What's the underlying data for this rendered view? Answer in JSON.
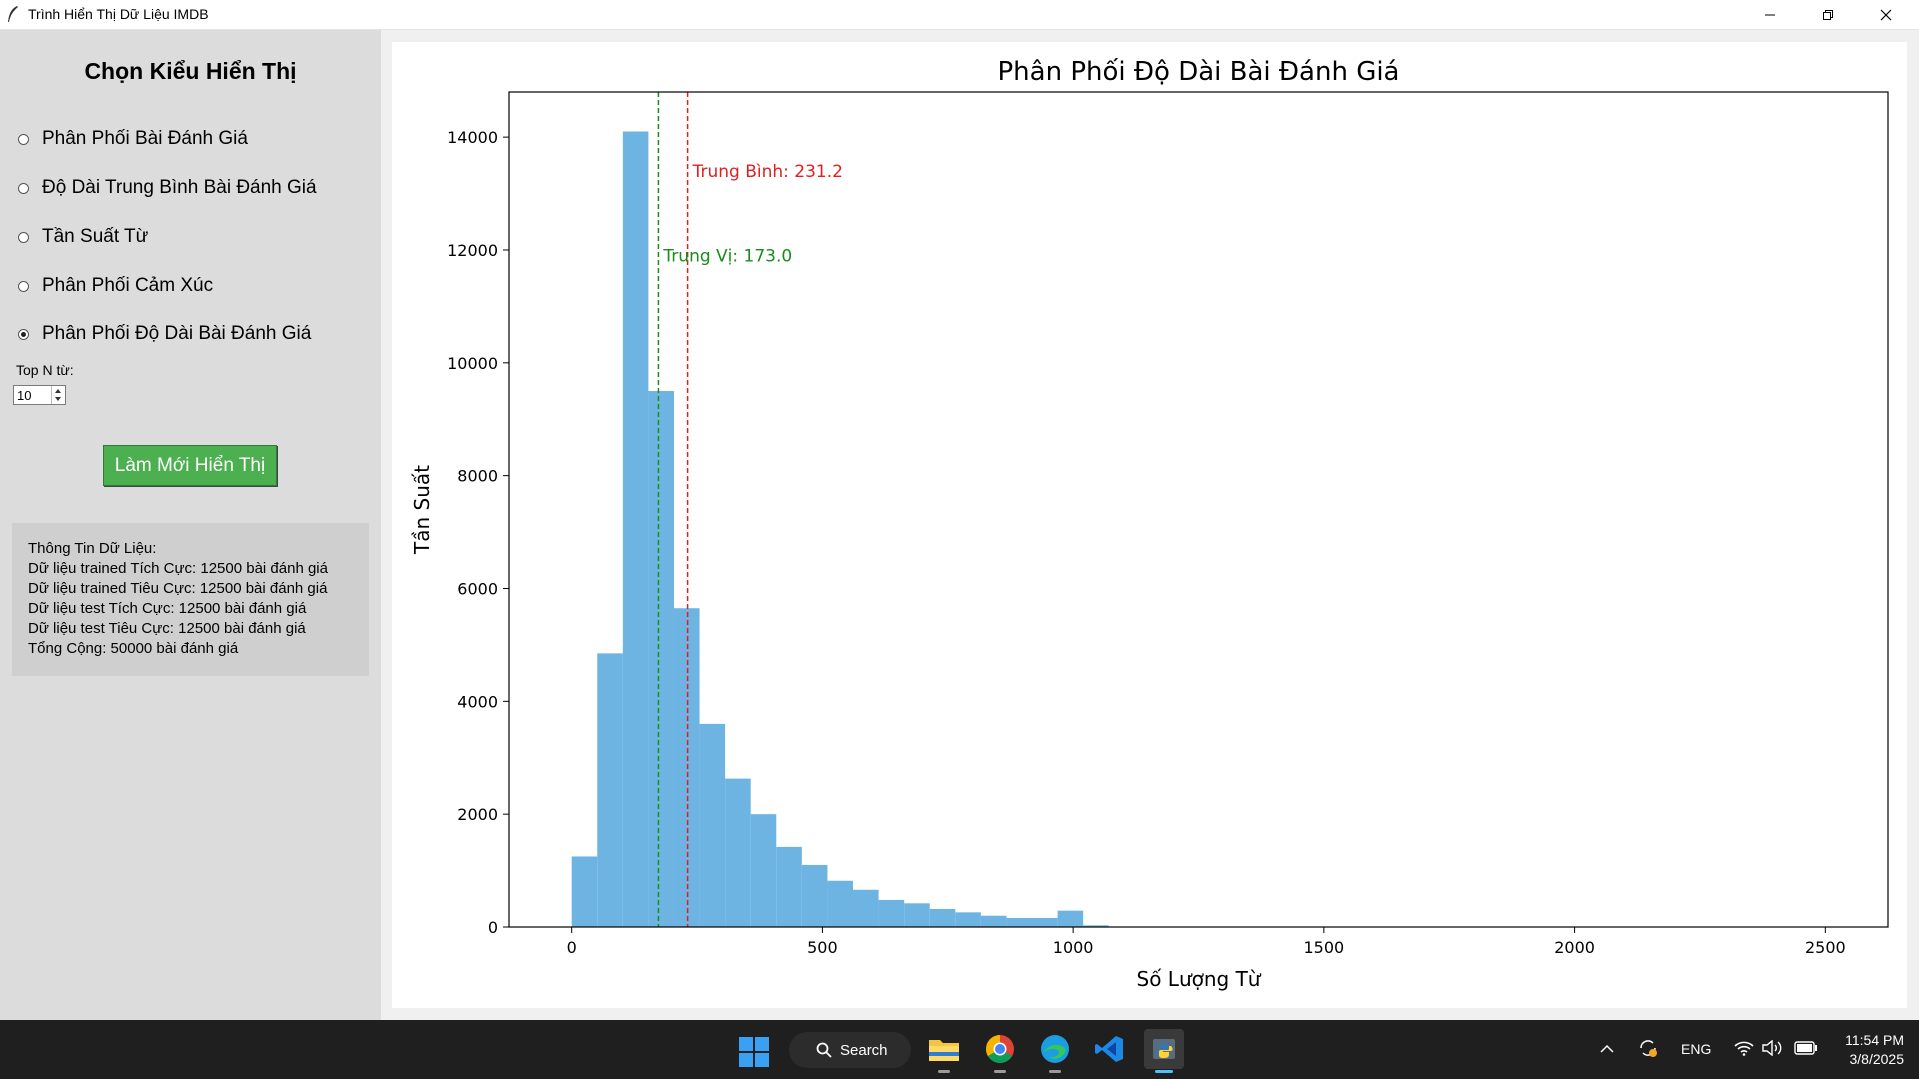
{
  "window": {
    "title": "Trình Hiển Thị Dữ Liệu IMDB"
  },
  "panel": {
    "title": "Chọn Kiểu Hiển Thị",
    "options": [
      {
        "label": "Phân Phối Bài Đánh Giá",
        "selected": false
      },
      {
        "label": "Độ Dài Trung Bình Bài Đánh Giá",
        "selected": false
      },
      {
        "label": "Tần Suất Từ",
        "selected": false
      },
      {
        "label": "Phân Phối Cảm Xúc",
        "selected": false
      },
      {
        "label": "Phân Phối Độ Dài Bài Đánh Giá",
        "selected": true
      }
    ],
    "top_n_label": "Top N từ:",
    "top_n_value": "10",
    "refresh_label": "Làm Mới Hiển Thị",
    "refresh_color": "#4caf50",
    "info_lines": [
      "Thông Tin Dữ Liệu:",
      "Dữ liệu trained Tích Cực: 12500 bài đánh giá",
      "Dữ liệu trained Tiêu Cực: 12500 bài đánh giá",
      "Dữ liệu test Tích Cực: 12500 bài đánh giá",
      "Dữ liệu test Tiêu Cực: 12500 bài đánh giá",
      "Tổng Cộng: 50000 bài đánh giá"
    ]
  },
  "chart_data": {
    "type": "bar",
    "title": "Phân Phối Độ Dài Bài Đánh Giá",
    "xlabel": "Số Lượng Từ",
    "ylabel": "Tần Suất",
    "xlim": [
      -125,
      2625
    ],
    "ylim": [
      0,
      14800
    ],
    "xticks": [
      0,
      500,
      1000,
      1500,
      2000,
      2500
    ],
    "yticks": [
      0,
      2000,
      4000,
      6000,
      8000,
      10000,
      12000,
      14000
    ],
    "bin_width": 51,
    "bins": [
      {
        "x0": 0,
        "value": 1250
      },
      {
        "x0": 51,
        "value": 4850
      },
      {
        "x0": 102,
        "value": 14100
      },
      {
        "x0": 153,
        "value": 9500
      },
      {
        "x0": 204,
        "value": 5650
      },
      {
        "x0": 255,
        "value": 3600
      },
      {
        "x0": 306,
        "value": 2630
      },
      {
        "x0": 357,
        "value": 2000
      },
      {
        "x0": 408,
        "value": 1420
      },
      {
        "x0": 459,
        "value": 1100
      },
      {
        "x0": 510,
        "value": 820
      },
      {
        "x0": 561,
        "value": 660
      },
      {
        "x0": 612,
        "value": 480
      },
      {
        "x0": 663,
        "value": 420
      },
      {
        "x0": 714,
        "value": 320
      },
      {
        "x0": 765,
        "value": 260
      },
      {
        "x0": 816,
        "value": 200
      },
      {
        "x0": 867,
        "value": 160
      },
      {
        "x0": 918,
        "value": 160
      },
      {
        "x0": 969,
        "value": 290
      },
      {
        "x0": 1020,
        "value": 30
      },
      {
        "x0": 1071,
        "value": 5
      }
    ],
    "bar_color": "#6db4e3",
    "reference_lines": [
      {
        "value": 231.2,
        "label": "Trung Bình: 231.2",
        "color": "#e02020",
        "label_y": 13400
      },
      {
        "value": 173.0,
        "label": "Trung Vị: 173.0",
        "color": "#1a8c1a",
        "label_y": 11900
      }
    ],
    "grid": false
  },
  "taskbar": {
    "search_label": "Search",
    "apps": [
      "file-explorer-icon",
      "chrome-icon",
      "edge-icon",
      "vscode-icon",
      "python-app-icon"
    ],
    "language": "ENG",
    "time": "11:54 PM",
    "date": "3/8/2025"
  }
}
